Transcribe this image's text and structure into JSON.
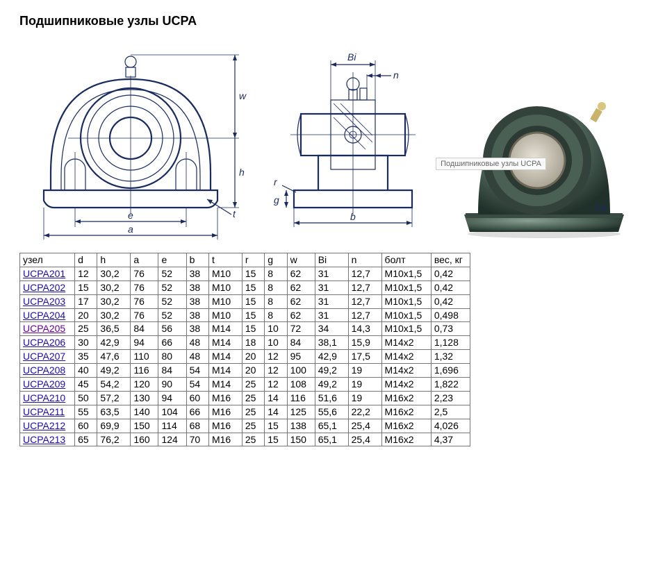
{
  "title": "Подшипниковые узлы UCPA",
  "tooltip_text": "Подшипниковые узлы UCPA",
  "diagram_labels": {
    "front": {
      "a": "a",
      "e": "e",
      "t": "t",
      "w": "w",
      "h": "h"
    },
    "side": {
      "Bi": "Bi",
      "n": "n",
      "b": "b",
      "r": "r",
      "g": "g"
    }
  },
  "diagram_style": {
    "stroke_color": "#1a2b5e",
    "main_stroke_width": 2.2,
    "thin_stroke_width": 1.2,
    "label_font_size": 14
  },
  "photo": {
    "body_color": "#4b6055",
    "body_highlight": "#8aa094",
    "body_shadow": "#20302a",
    "bore_color": "#cfcabe",
    "nipple_color": "#c9b26a"
  },
  "table": {
    "columns": [
      "узел",
      "d",
      "h",
      "a",
      "e",
      "b",
      "t",
      "r",
      "g",
      "w",
      "Bi",
      "n",
      "болт",
      "вес, кг"
    ],
    "col_widths_ch": [
      9,
      3,
      5,
      4,
      4,
      3,
      5,
      3,
      3,
      4,
      5,
      5,
      8,
      6
    ],
    "visited_row_index": 4,
    "rows": [
      [
        "UCPA201",
        "12",
        "30,2",
        "76",
        "52",
        "38",
        "M10",
        "15",
        "8",
        "62",
        "31",
        "12,7",
        "M10x1,5",
        "0,42"
      ],
      [
        "UCPA202",
        "15",
        "30,2",
        "76",
        "52",
        "38",
        "M10",
        "15",
        "8",
        "62",
        "31",
        "12,7",
        "M10x1,5",
        "0,42"
      ],
      [
        "UCPA203",
        "17",
        "30,2",
        "76",
        "52",
        "38",
        "M10",
        "15",
        "8",
        "62",
        "31",
        "12,7",
        "M10x1,5",
        "0,42"
      ],
      [
        "UCPA204",
        "20",
        "30,2",
        "76",
        "52",
        "38",
        "M10",
        "15",
        "8",
        "62",
        "31",
        "12,7",
        "M10x1,5",
        "0,498"
      ],
      [
        "UCPA205",
        "25",
        "36,5",
        "84",
        "56",
        "38",
        "M14",
        "15",
        "10",
        "72",
        "34",
        "14,3",
        "M10x1,5",
        "0,73"
      ],
      [
        "UCPA206",
        "30",
        "42,9",
        "94",
        "66",
        "48",
        "M14",
        "18",
        "10",
        "84",
        "38,1",
        "15,9",
        "M14x2",
        "1,128"
      ],
      [
        "UCPA207",
        "35",
        "47,6",
        "110",
        "80",
        "48",
        "M14",
        "20",
        "12",
        "95",
        "42,9",
        "17,5",
        "M14x2",
        "1,32"
      ],
      [
        "UCPA208",
        "40",
        "49,2",
        "116",
        "84",
        "54",
        "M14",
        "20",
        "12",
        "100",
        "49,2",
        "19",
        "M14x2",
        "1,696"
      ],
      [
        "UCPA209",
        "45",
        "54,2",
        "120",
        "90",
        "54",
        "M14",
        "25",
        "12",
        "108",
        "49,2",
        "19",
        "M14x2",
        "1,822"
      ],
      [
        "UCPA210",
        "50",
        "57,2",
        "130",
        "94",
        "60",
        "M16",
        "25",
        "14",
        "116",
        "51,6",
        "19",
        "M16x2",
        "2,23"
      ],
      [
        "UCPA211",
        "55",
        "63,5",
        "140",
        "104",
        "66",
        "M16",
        "25",
        "14",
        "125",
        "55,6",
        "22,2",
        "M16x2",
        "2,5"
      ],
      [
        "UCPA212",
        "60",
        "69,9",
        "150",
        "114",
        "68",
        "M16",
        "25",
        "15",
        "138",
        "65,1",
        "25,4",
        "M16x2",
        "4,026"
      ],
      [
        "UCPA213",
        "65",
        "76,2",
        "160",
        "124",
        "70",
        "M16",
        "25",
        "15",
        "150",
        "65,1",
        "25,4",
        "M16x2",
        "4,37"
      ]
    ]
  }
}
